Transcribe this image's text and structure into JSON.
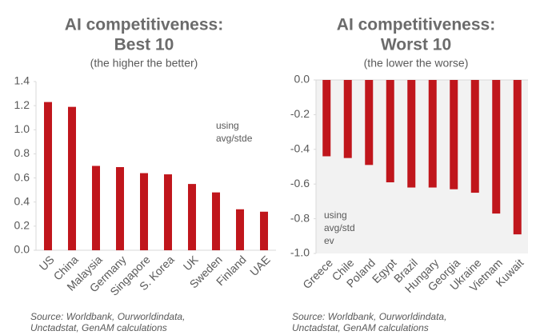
{
  "chart_data": [
    {
      "type": "bar",
      "title": [
        "AI competitiveness:",
        "Best 10"
      ],
      "subtitle": "(the higher the better)",
      "categories": [
        "US",
        "China",
        "Malaysia",
        "Germany",
        "Singapore",
        "S. Korea",
        "UK",
        "Sweden",
        "Finland",
        "UAE"
      ],
      "values": [
        1.23,
        1.19,
        0.7,
        0.69,
        0.64,
        0.63,
        0.55,
        0.48,
        0.34,
        0.32
      ],
      "color": "#c0161c",
      "ylim": [
        0,
        1.4
      ],
      "yticks": [
        {
          "value": 0,
          "label": "0.0"
        },
        0.2,
        0.4,
        0.6,
        0.8,
        {
          "value": 1,
          "label": "1.0"
        },
        1.2,
        1.4
      ],
      "annotation": [
        "using",
        "avg/stde"
      ],
      "source": [
        "Source: Worldbank, Ourworldindata,",
        "Unctadstat, GenAM calculations"
      ],
      "background": false
    },
    {
      "type": "bar",
      "title": [
        "AI competitiveness:",
        "Worst 10"
      ],
      "subtitle": "(the lower the worse)",
      "categories": [
        "Greece",
        "Chile",
        "Poland",
        "Egypt",
        "Brazil",
        "Hungary",
        "Georgia",
        "Ukraine",
        "Vietnam",
        "Kuwait"
      ],
      "values": [
        -0.44,
        -0.45,
        -0.49,
        -0.59,
        -0.62,
        -0.62,
        -0.63,
        -0.65,
        -0.77,
        -0.89
      ],
      "color": "#c0161c",
      "ylim": [
        -1,
        0
      ],
      "yticks": [
        {
          "value": 0,
          "label": "0.0"
        },
        -0.2,
        -0.4,
        -0.6,
        -0.8,
        {
          "value": -1,
          "label": "-1.0"
        }
      ],
      "annotation": [
        "using",
        "avg/std",
        "ev"
      ],
      "source": [
        "Source: Worldbank, Ourworldindata,",
        "Unctadstat, GenAM calculations"
      ],
      "background": true
    }
  ]
}
